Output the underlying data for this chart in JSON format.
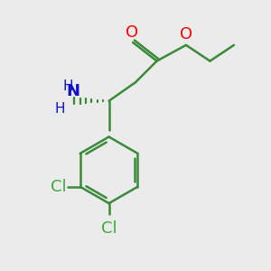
{
  "bg_color": "#ebebeb",
  "bond_color": "#3a8a3a",
  "bond_width": 1.8,
  "atom_colors": {
    "O": "#ff0000",
    "N": "#1010cc",
    "Cl": "#3aaa3a",
    "C": "#000000",
    "H": "#000000"
  },
  "font_size_atom": 13,
  "font_size_h": 11
}
